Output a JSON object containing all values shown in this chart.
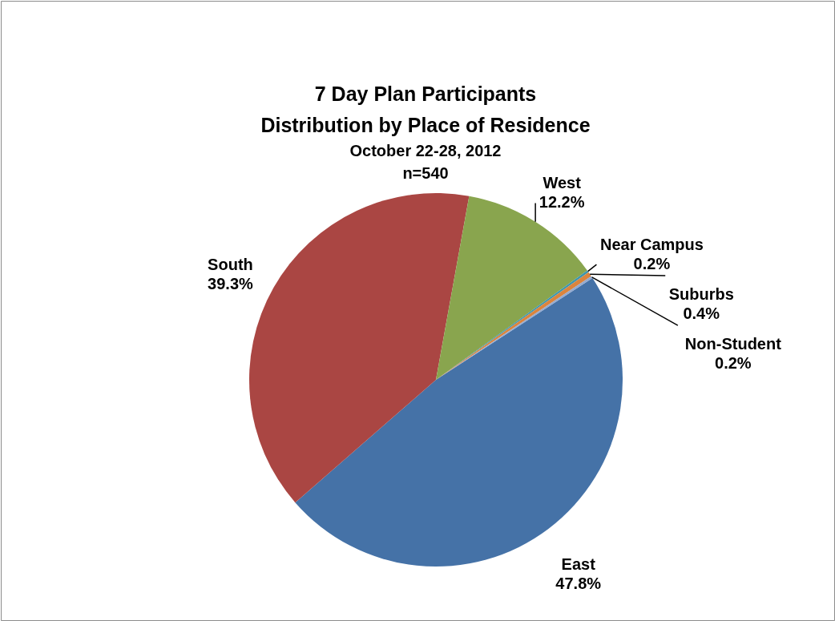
{
  "chart_data": {
    "type": "pie",
    "title": "7 Day Plan Participants\nDistribution by Place of Residence",
    "subtitle": "October 22-28, 2012\nn=540",
    "categories": [
      "East",
      "South",
      "West",
      "Near Campus",
      "Suburbs",
      "Non-Student"
    ],
    "values": [
      47.8,
      39.3,
      12.2,
      0.2,
      0.4,
      0.2
    ],
    "value_labels": [
      "47.8%",
      "39.3%",
      "12.2%",
      "0.2%",
      "0.4%",
      "0.2%"
    ],
    "colors": [
      "#4572a7",
      "#aa4643",
      "#89a54e",
      "#3d96ae",
      "#db843d",
      "#93a9cf"
    ]
  }
}
